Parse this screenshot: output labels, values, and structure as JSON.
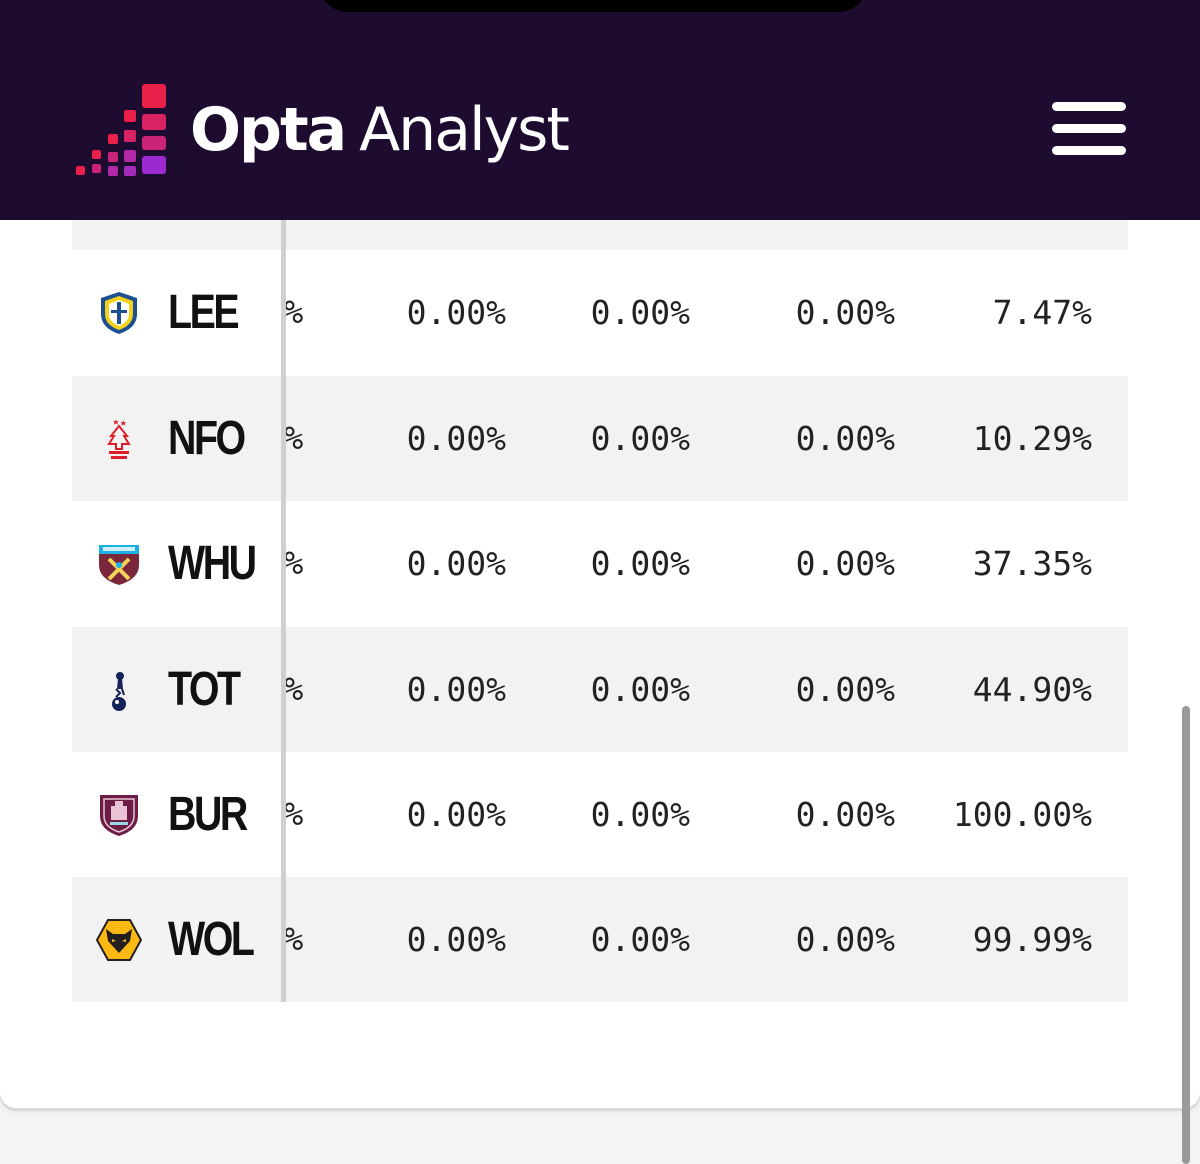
{
  "brand": {
    "name_bold": "Opta",
    "name_light": "Analyst",
    "bg_color": "#1e0c30",
    "mark_colors": [
      "#e8204a",
      "#c9237a",
      "#9b2bd0"
    ]
  },
  "menu": {
    "icon": "hamburger-icon"
  },
  "table": {
    "rows": [
      {
        "team": "LEE",
        "crest": "leeds-crest-icon",
        "cut": "%",
        "c1": "0.00%",
        "c2": "0.00%",
        "c3": "0.00%",
        "c4": "7.47%"
      },
      {
        "team": "NFO",
        "crest": "forest-crest-icon",
        "cut": "%",
        "c1": "0.00%",
        "c2": "0.00%",
        "c3": "0.00%",
        "c4": "10.29%"
      },
      {
        "team": "WHU",
        "crest": "westham-crest-icon",
        "cut": "%",
        "c1": "0.00%",
        "c2": "0.00%",
        "c3": "0.00%",
        "c4": "37.35%"
      },
      {
        "team": "TOT",
        "crest": "spurs-crest-icon",
        "cut": "%",
        "c1": "0.00%",
        "c2": "0.00%",
        "c3": "0.00%",
        "c4": "44.90%"
      },
      {
        "team": "BUR",
        "crest": "burnley-crest-icon",
        "cut": "%",
        "c1": "0.00%",
        "c2": "0.00%",
        "c3": "0.00%",
        "c4": "100.00%"
      },
      {
        "team": "WOL",
        "crest": "wolves-crest-icon",
        "cut": "%",
        "c1": "0.00%",
        "c2": "0.00%",
        "c3": "0.00%",
        "c4": "99.99%"
      }
    ]
  }
}
